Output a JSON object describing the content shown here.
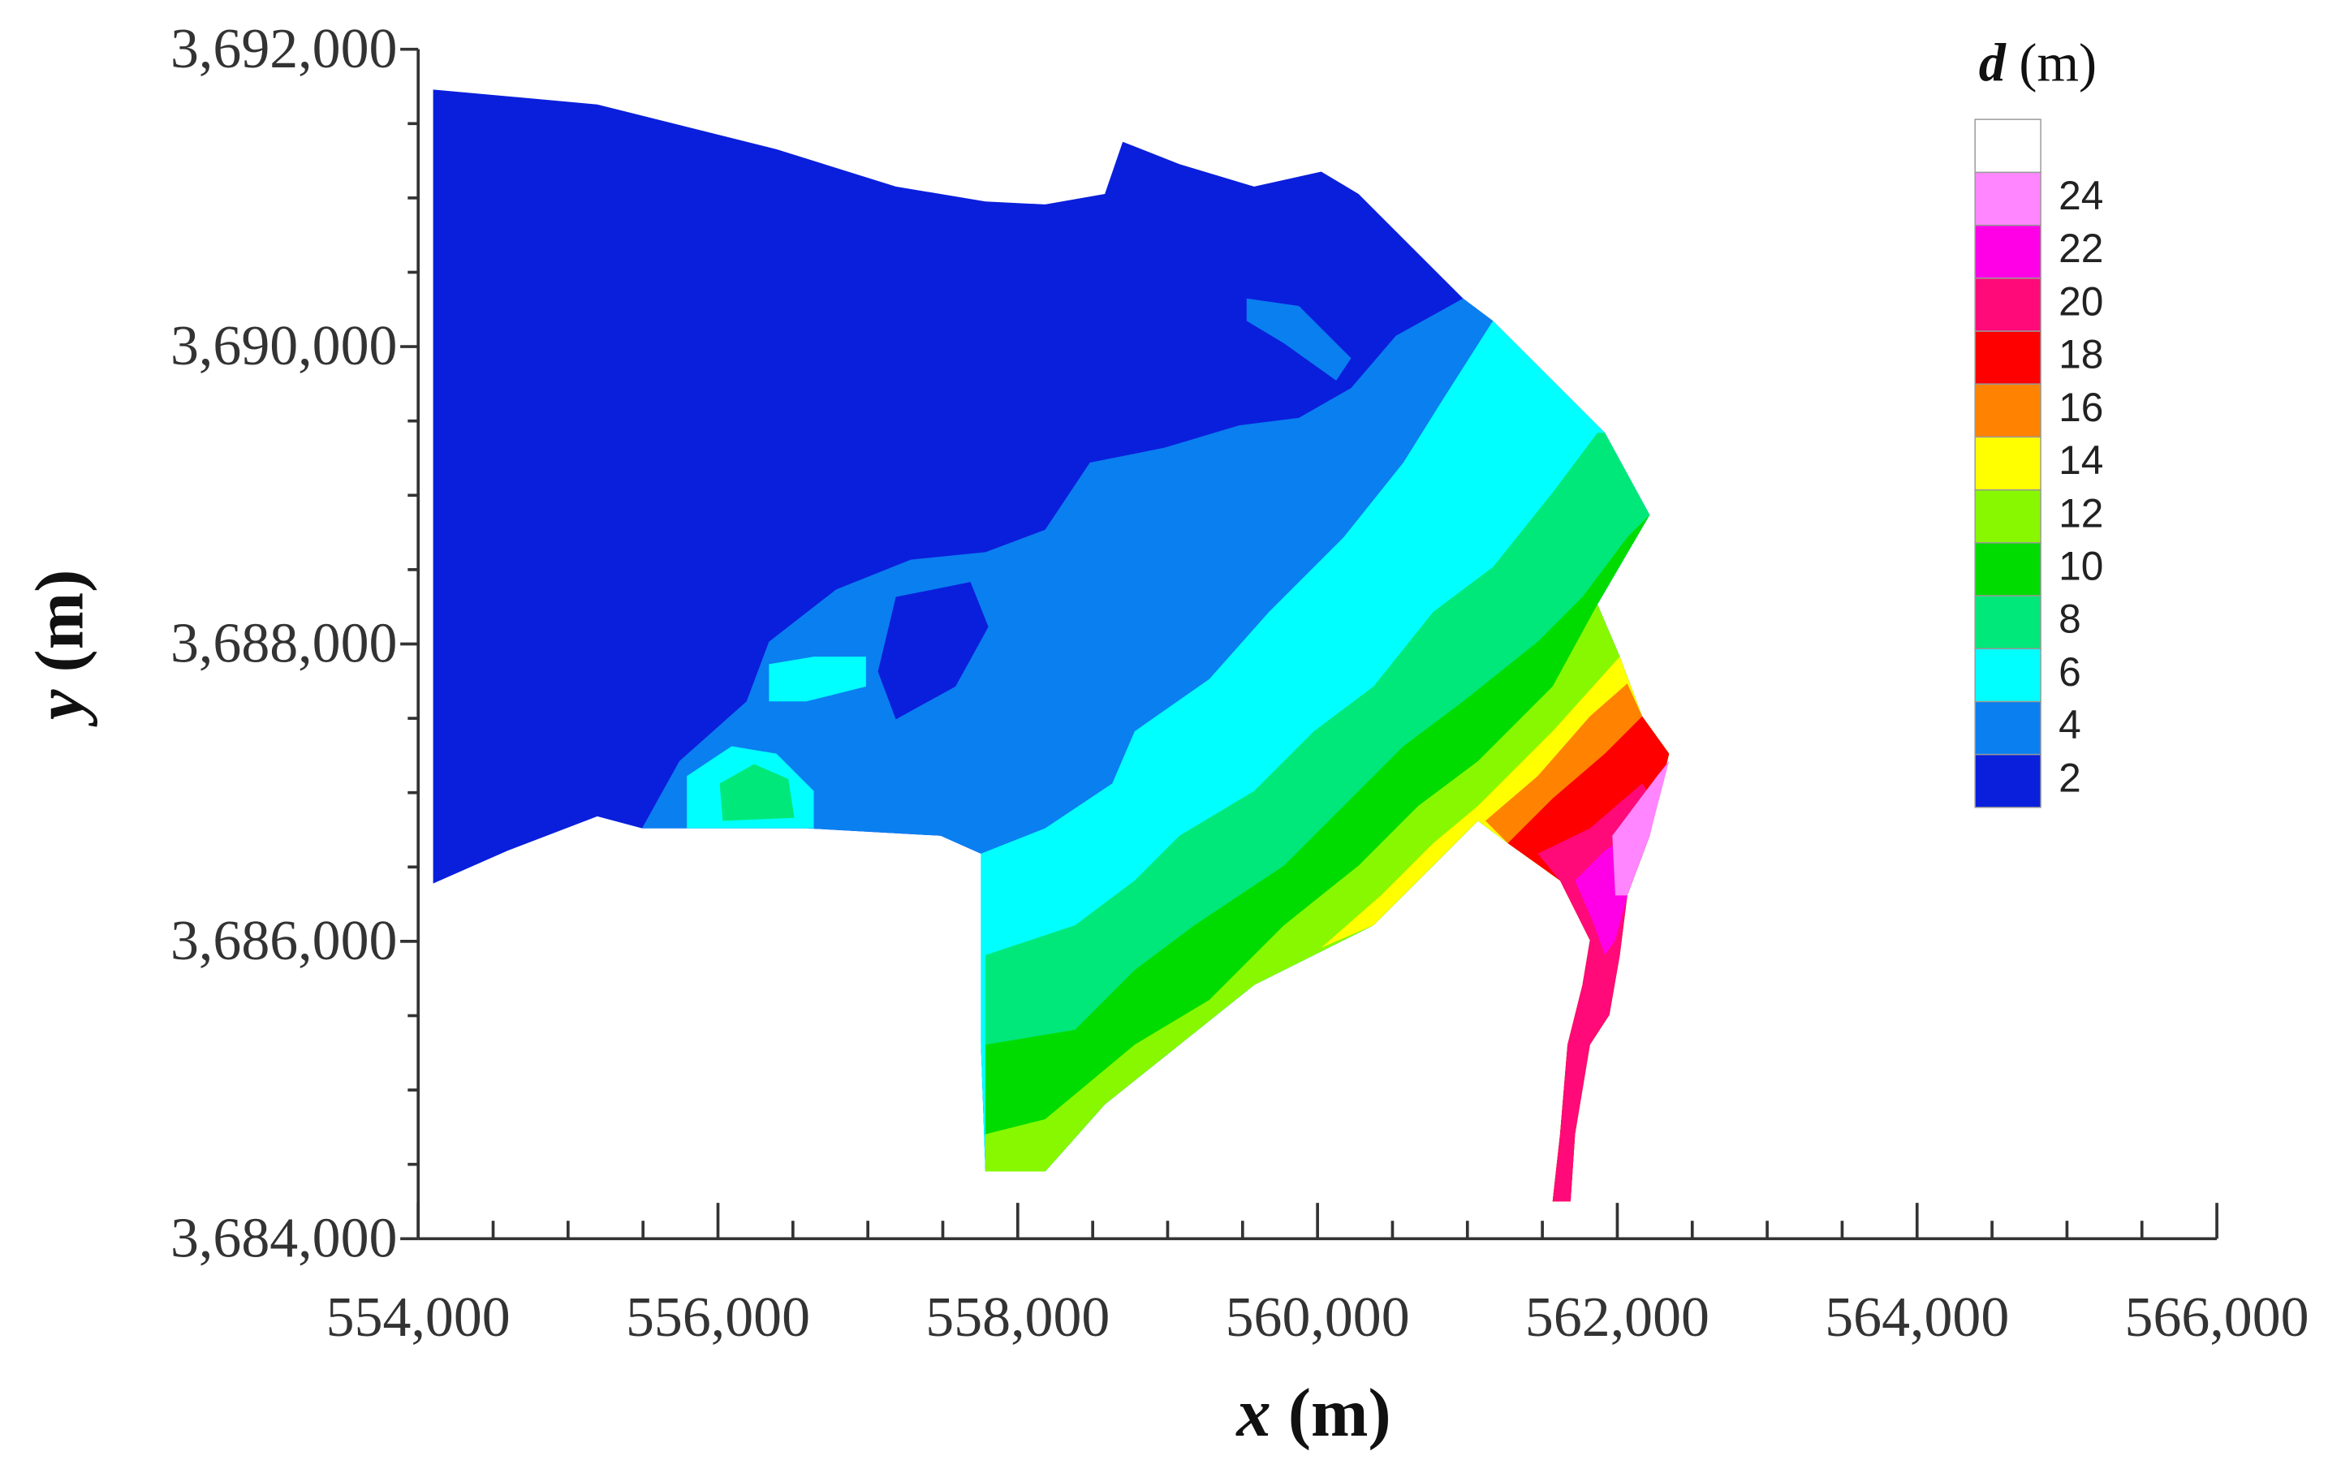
{
  "chart_data": {
    "type": "contour",
    "xlabel": {
      "var": "x",
      "unit": "(m)"
    },
    "ylabel": {
      "var": "y",
      "unit": "(m)"
    },
    "xlim": [
      554000,
      566000
    ],
    "ylim": [
      3684000,
      3692000
    ],
    "xticks": [
      {
        "value": 554000,
        "label": "554,000"
      },
      {
        "value": 556000,
        "label": "556,000"
      },
      {
        "value": 558000,
        "label": "558,000"
      },
      {
        "value": 560000,
        "label": "560,000"
      },
      {
        "value": 562000,
        "label": "562,000"
      },
      {
        "value": 564000,
        "label": "564,000"
      },
      {
        "value": 566000,
        "label": "566,000"
      }
    ],
    "yticks": [
      {
        "value": 3684000,
        "label": "3,684,000"
      },
      {
        "value": 3686000,
        "label": "3,686,000"
      },
      {
        "value": 3688000,
        "label": "3,688,000"
      },
      {
        "value": 3690000,
        "label": "3,690,000"
      },
      {
        "value": 3692000,
        "label": "3,692,000"
      }
    ],
    "xminorticks": [
      554500,
      555000,
      555500,
      556500,
      557000,
      557500,
      558500,
      559000,
      559500,
      560500,
      561000,
      561500,
      562500,
      563000,
      563500,
      564500,
      565000,
      565500
    ],
    "yminorticks": [
      3684500,
      3685000,
      3685500,
      3686500,
      3687000,
      3687500,
      3688500,
      3689000,
      3689500,
      3690500,
      3691000,
      3691500
    ],
    "colorbar": {
      "title": {
        "var": "d",
        "unit": "(m)"
      },
      "levels": [
        2,
        4,
        6,
        8,
        10,
        12,
        14,
        16,
        18,
        20,
        22,
        24
      ],
      "colors": [
        "#0a1fdc",
        "#0a7ff0",
        "#00ffff",
        "#00e87a",
        "#00dc00",
        "#88f800",
        "#ffff00",
        "#ff8200",
        "#ff0000",
        "#ff0a78",
        "#ff00e6",
        "#ff86ff",
        "#ffffff"
      ]
    }
  }
}
